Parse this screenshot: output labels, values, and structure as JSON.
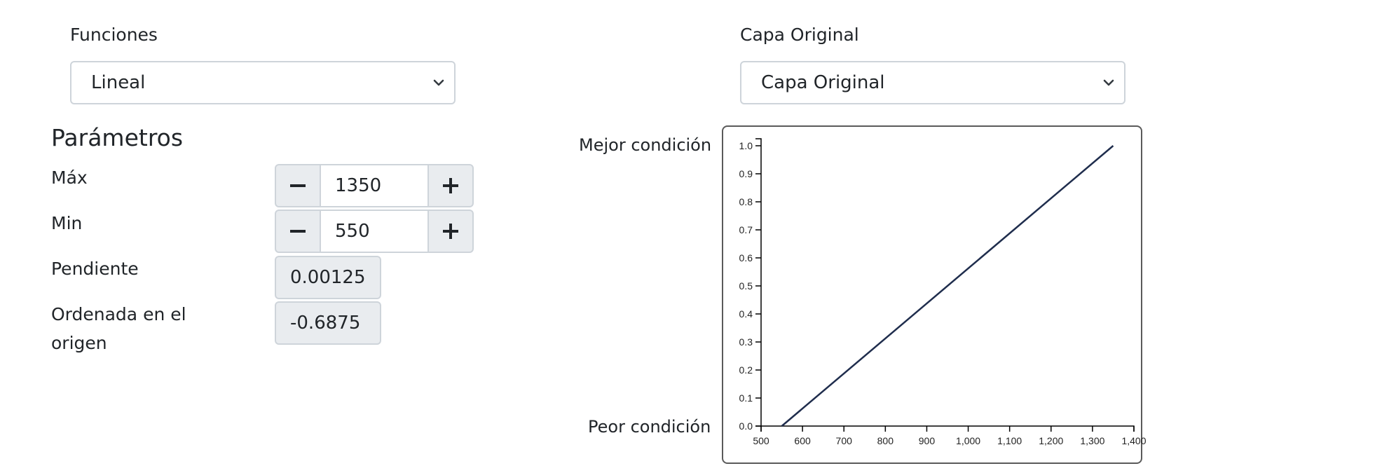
{
  "functions": {
    "label": "Funciones",
    "selected": "Lineal"
  },
  "layer": {
    "label": "Capa Original",
    "selected": "Capa Original"
  },
  "parameters": {
    "heading": "Parámetros",
    "max": {
      "label": "Máx",
      "value": "1350"
    },
    "min": {
      "label": "Min",
      "value": "550"
    },
    "slope": {
      "label": "Pendiente",
      "value": "0.00125"
    },
    "intercept": {
      "label_line1": "Ordenada en el",
      "label_line2": "origen",
      "value": "-0.6875"
    }
  },
  "chart_labels": {
    "best": "Mejor condición",
    "worst": "Peor condición"
  },
  "icons": {
    "select_chevron": "chevron-down-icon",
    "decrement": "minus-icon",
    "increment": "plus-icon"
  },
  "colors": {
    "line": "#1f2d4d",
    "border": "#ced4da",
    "addon_bg": "#e9ecef"
  },
  "chart_data": {
    "type": "line",
    "x": [
      550,
      1350
    ],
    "y": [
      0,
      1
    ],
    "xlim": [
      500,
      1400
    ],
    "ylim": [
      0,
      1
    ],
    "xticks": [
      "500",
      "600",
      "700",
      "800",
      "900",
      "1,000",
      "1,100",
      "1,200",
      "1,300",
      "1,400"
    ],
    "yticks": [
      "0.0",
      "0.1",
      "0.2",
      "0.3",
      "0.4",
      "0.5",
      "0.6",
      "0.7",
      "0.8",
      "0.9",
      "1.0"
    ],
    "xlabel": "",
    "ylabel": "",
    "grid": false
  }
}
